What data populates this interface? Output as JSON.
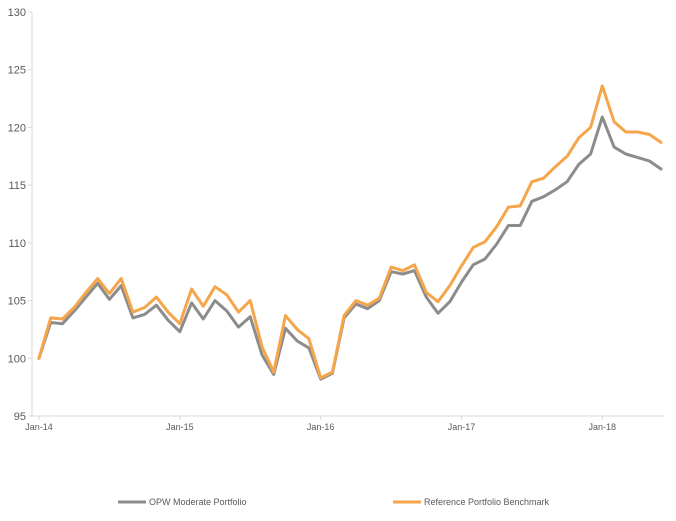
{
  "chart_data": {
    "type": "line",
    "title": "",
    "xlabel": "",
    "ylabel": "",
    "ylim": [
      95,
      130
    ],
    "y_ticks": [
      "95",
      "100",
      "105",
      "110",
      "115",
      "120",
      "125",
      "130"
    ],
    "x_tick_labels": [
      "Jan-14",
      "Jan-15",
      "Jan-16",
      "Jan-17",
      "Jan-18"
    ],
    "x": [
      "Jan-14",
      "Feb-14",
      "Mar-14",
      "Apr-14",
      "May-14",
      "Jun-14",
      "Jul-14",
      "Aug-14",
      "Sep-14",
      "Oct-14",
      "Nov-14",
      "Dec-14",
      "Jan-15",
      "Feb-15",
      "Mar-15",
      "Apr-15",
      "May-15",
      "Jun-15",
      "Jul-15",
      "Aug-15",
      "Sep-15",
      "Oct-15",
      "Nov-15",
      "Dec-15",
      "Jan-16",
      "Feb-16",
      "Mar-16",
      "Apr-16",
      "May-16",
      "Jun-16",
      "Jul-16",
      "Aug-16",
      "Sep-16",
      "Oct-16",
      "Nov-16",
      "Dec-16",
      "Jan-17",
      "Feb-17",
      "Mar-17",
      "Apr-17",
      "May-17",
      "Jun-17",
      "Jul-17",
      "Aug-17",
      "Sep-17",
      "Oct-17",
      "Nov-17",
      "Dec-17",
      "Jan-18",
      "Feb-18",
      "Mar-18",
      "Apr-18",
      "May-18",
      "Jun-18"
    ],
    "grid": false,
    "legend_position": "bottom",
    "series": [
      {
        "name": "OPW Moderate Portfolio",
        "color": "#8c8c8c",
        "values": [
          100.0,
          103.1,
          103.0,
          104.1,
          105.3,
          106.5,
          105.1,
          106.3,
          103.5,
          103.8,
          104.6,
          103.3,
          102.3,
          104.8,
          103.4,
          105.0,
          104.1,
          102.7,
          103.6,
          100.3,
          98.6,
          102.6,
          101.5,
          100.9,
          98.2,
          98.7,
          103.5,
          104.7,
          104.3,
          105.0,
          107.5,
          107.3,
          107.6,
          105.3,
          103.9,
          104.9,
          106.6,
          108.1,
          108.6,
          109.9,
          111.5,
          111.5,
          113.6,
          114.0,
          114.6,
          115.3,
          116.8,
          117.7,
          120.9,
          118.3,
          117.7,
          117.4,
          117.1,
          116.4
        ]
      },
      {
        "name": "Reference Portfolio Benchmark",
        "color": "#f5a54a",
        "values": [
          100.0,
          103.5,
          103.4,
          104.4,
          105.7,
          106.9,
          105.6,
          106.9,
          104.0,
          104.4,
          105.3,
          104.0,
          103.0,
          106.0,
          104.5,
          106.2,
          105.5,
          104.0,
          105.0,
          101.0,
          98.8,
          103.7,
          102.5,
          101.7,
          98.3,
          98.8,
          103.7,
          105.0,
          104.6,
          105.2,
          107.9,
          107.6,
          108.1,
          105.7,
          104.9,
          106.3,
          108.0,
          109.6,
          110.1,
          111.4,
          113.1,
          113.2,
          115.3,
          115.6,
          116.6,
          117.5,
          119.1,
          120.0,
          123.6,
          120.5,
          119.6,
          119.6,
          119.4,
          118.7
        ]
      }
    ]
  }
}
